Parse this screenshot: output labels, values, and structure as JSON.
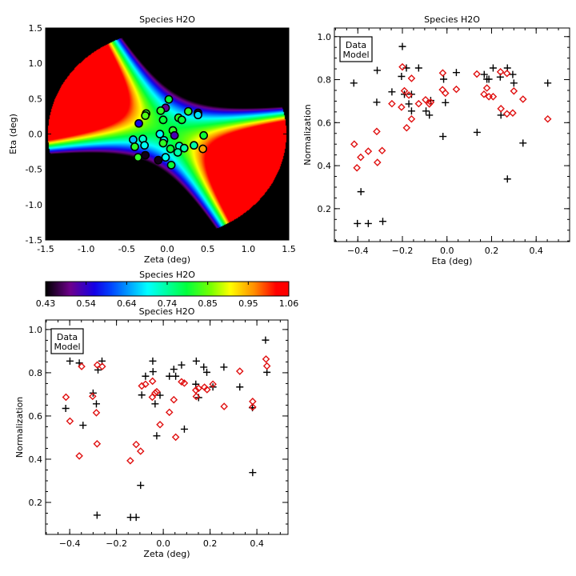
{
  "chart_data": [
    {
      "type": "heatmap",
      "title": "Species H2O",
      "xlabel": "Zeta (deg)",
      "ylabel": "Eta (deg)",
      "xlim": [
        -1.5,
        1.5
      ],
      "ylim": [
        -1.5,
        1.5
      ],
      "xticks": [
        "-1.5",
        "-1.0",
        "-0.5",
        "0.0",
        "0.5",
        "1.0",
        "1.5"
      ],
      "yticks": [
        "-1.5",
        "-1.0",
        "-0.5",
        "0.0",
        "0.5",
        "1.0",
        "1.5"
      ],
      "colorbar": {
        "title": "Species H2O",
        "ticks": [
          "0.43",
          "0.54",
          "0.64",
          "0.74",
          "0.85",
          "0.95",
          "1.06"
        ],
        "range": [
          0.43,
          1.06
        ]
      },
      "points": [
        {
          "zeta": 0.02,
          "eta": 0.49,
          "value": 0.8
        },
        {
          "zeta": -0.02,
          "eta": 0.37,
          "value": 0.5
        },
        {
          "zeta": -0.08,
          "eta": 0.33,
          "value": 0.82
        },
        {
          "zeta": -0.26,
          "eta": 0.29,
          "value": 0.82
        },
        {
          "zeta": -0.27,
          "eta": 0.26,
          "value": 0.84
        },
        {
          "zeta": -0.35,
          "eta": 0.15,
          "value": 0.56
        },
        {
          "zeta": -0.05,
          "eta": 0.2,
          "value": 0.8
        },
        {
          "zeta": 0.14,
          "eta": 0.23,
          "value": 0.82
        },
        {
          "zeta": 0.18,
          "eta": 0.2,
          "value": 0.8
        },
        {
          "zeta": 0.26,
          "eta": 0.32,
          "value": 0.82
        },
        {
          "zeta": 0.38,
          "eta": 0.3,
          "value": 0.45
        },
        {
          "zeta": 0.38,
          "eta": 0.27,
          "value": 0.68
        },
        {
          "zeta": -0.09,
          "eta": 0.0,
          "value": 0.7
        },
        {
          "zeta": 0.07,
          "eta": 0.05,
          "value": 0.82
        },
        {
          "zeta": 0.09,
          "eta": -0.02,
          "value": 0.52
        },
        {
          "zeta": 0.45,
          "eta": -0.02,
          "value": 0.8
        },
        {
          "zeta": -0.42,
          "eta": -0.08,
          "value": 0.66
        },
        {
          "zeta": -0.3,
          "eta": -0.07,
          "value": 0.72
        },
        {
          "zeta": -0.4,
          "eta": -0.18,
          "value": 0.82
        },
        {
          "zeta": -0.28,
          "eta": -0.16,
          "value": 0.7
        },
        {
          "zeta": -0.04,
          "eta": -0.09,
          "value": 0.7
        },
        {
          "zeta": -0.05,
          "eta": -0.13,
          "value": 0.82
        },
        {
          "zeta": 0.04,
          "eta": -0.21,
          "value": 0.8
        },
        {
          "zeta": 0.15,
          "eta": -0.17,
          "value": 0.72
        },
        {
          "zeta": 0.21,
          "eta": -0.2,
          "value": 0.74
        },
        {
          "zeta": 0.13,
          "eta": -0.26,
          "value": 0.74
        },
        {
          "zeta": 0.33,
          "eta": -0.16,
          "value": 0.74
        },
        {
          "zeta": 0.44,
          "eta": -0.21,
          "value": 0.96
        },
        {
          "zeta": -0.36,
          "eta": -0.33,
          "value": 0.82
        },
        {
          "zeta": -0.27,
          "eta": -0.3,
          "value": 0.44
        },
        {
          "zeta": -0.11,
          "eta": -0.37,
          "value": 0.44
        },
        {
          "zeta": -0.02,
          "eta": -0.33,
          "value": 0.7
        },
        {
          "zeta": 0.05,
          "eta": -0.44,
          "value": 0.8
        }
      ]
    },
    {
      "type": "scatter",
      "title": "Species H2O",
      "xlabel": "Eta (deg)",
      "ylabel": "Normalization",
      "xlim": [
        -0.505,
        0.55
      ],
      "ylim": [
        0.047,
        1.04
      ],
      "xticks": [
        -0.4,
        -0.2,
        0.0,
        0.2,
        0.4
      ],
      "yticks": [
        0.2,
        0.4,
        0.6,
        0.8,
        1.0
      ],
      "legend": {
        "position": "top-left",
        "entries": [
          "Data",
          "Model"
        ]
      },
      "series": [
        {
          "name": "Data",
          "marker": "plus",
          "color": "#000000",
          "points": [
            [
              -0.418,
              0.784
            ],
            [
              -0.402,
              0.131
            ],
            [
              -0.386,
              0.279
            ],
            [
              -0.353,
              0.131
            ],
            [
              -0.313,
              0.843
            ],
            [
              -0.315,
              0.695
            ],
            [
              -0.288,
              0.141
            ],
            [
              -0.247,
              0.743
            ],
            [
              -0.2,
              0.954
            ],
            [
              -0.204,
              0.815
            ],
            [
              -0.182,
              0.854
            ],
            [
              -0.191,
              0.732
            ],
            [
              -0.159,
              0.732
            ],
            [
              -0.171,
              0.687
            ],
            [
              -0.159,
              0.654
            ],
            [
              -0.127,
              0.854
            ],
            [
              -0.094,
              0.654
            ],
            [
              -0.079,
              0.635
            ],
            [
              -0.073,
              0.703
            ],
            [
              -0.018,
              0.536
            ],
            [
              -0.015,
              0.802
            ],
            [
              -0.007,
              0.693
            ],
            [
              0.042,
              0.833
            ],
            [
              0.135,
              0.555
            ],
            [
              0.167,
              0.824
            ],
            [
              0.179,
              0.802
            ],
            [
              0.188,
              0.802
            ],
            [
              0.207,
              0.854
            ],
            [
              0.239,
              0.812
            ],
            [
              0.242,
              0.635
            ],
            [
              0.271,
              0.854
            ],
            [
              0.271,
              0.338
            ],
            [
              0.295,
              0.824
            ],
            [
              0.3,
              0.784
            ],
            [
              0.341,
              0.505
            ],
            [
              0.452,
              0.784
            ]
          ]
        },
        {
          "name": "Model",
          "marker": "diamond",
          "color": "#e01010",
          "points": [
            [
              -0.416,
              0.5
            ],
            [
              -0.404,
              0.39
            ],
            [
              -0.387,
              0.439
            ],
            [
              -0.353,
              0.467
            ],
            [
              -0.315,
              0.559
            ],
            [
              -0.312,
              0.415
            ],
            [
              -0.291,
              0.47
            ],
            [
              -0.247,
              0.688
            ],
            [
              -0.204,
              0.672
            ],
            [
              -0.2,
              0.859
            ],
            [
              -0.191,
              0.748
            ],
            [
              -0.171,
              0.728
            ],
            [
              -0.159,
              0.806
            ],
            [
              -0.159,
              0.617
            ],
            [
              -0.181,
              0.576
            ],
            [
              -0.127,
              0.688
            ],
            [
              -0.096,
              0.706
            ],
            [
              -0.079,
              0.687
            ],
            [
              -0.073,
              0.695
            ],
            [
              -0.019,
              0.831
            ],
            [
              -0.02,
              0.753
            ],
            [
              -0.007,
              0.737
            ],
            [
              0.042,
              0.755
            ],
            [
              0.134,
              0.826
            ],
            [
              0.166,
              0.732
            ],
            [
              0.179,
              0.761
            ],
            [
              0.188,
              0.721
            ],
            [
              0.207,
              0.721
            ],
            [
              0.24,
              0.836
            ],
            [
              0.242,
              0.665
            ],
            [
              0.269,
              0.829
            ],
            [
              0.269,
              0.641
            ],
            [
              0.295,
              0.645
            ],
            [
              0.3,
              0.747
            ],
            [
              0.341,
              0.709
            ],
            [
              0.452,
              0.617
            ]
          ]
        }
      ]
    },
    {
      "type": "scatter",
      "title": "Species H2O",
      "xlabel": "Zeta (deg)",
      "ylabel": "Normalization",
      "xlim": [
        -0.503,
        0.533
      ],
      "ylim": [
        0.052,
        1.044
      ],
      "xticks": [
        -0.4,
        -0.2,
        0.0,
        0.2,
        0.4
      ],
      "yticks": [
        0.2,
        0.4,
        0.6,
        0.8,
        1.0
      ],
      "legend": {
        "position": "top-left",
        "entries": [
          "Data",
          "Model"
        ]
      },
      "series": [
        {
          "name": "Data",
          "marker": "plus",
          "color": "#000000",
          "points": [
            [
              -0.399,
              0.854
            ],
            [
              -0.417,
              0.635
            ],
            [
              -0.359,
              0.845
            ],
            [
              -0.343,
              0.557
            ],
            [
              -0.3,
              0.706
            ],
            [
              -0.286,
              0.656
            ],
            [
              -0.279,
              0.813
            ],
            [
              -0.262,
              0.854
            ],
            [
              -0.283,
              0.141
            ],
            [
              -0.14,
              0.131
            ],
            [
              -0.116,
              0.131
            ],
            [
              -0.097,
              0.279
            ],
            [
              -0.092,
              0.697
            ],
            [
              -0.076,
              0.784
            ],
            [
              -0.045,
              0.854
            ],
            [
              -0.044,
              0.805
            ],
            [
              -0.035,
              0.656
            ],
            [
              -0.028,
              0.508
            ],
            [
              -0.014,
              0.696
            ],
            [
              0.026,
              0.784
            ],
            [
              0.045,
              0.816
            ],
            [
              0.053,
              0.784
            ],
            [
              0.078,
              0.836
            ],
            [
              0.09,
              0.539
            ],
            [
              0.141,
              0.854
            ],
            [
              0.139,
              0.747
            ],
            [
              0.151,
              0.685
            ],
            [
              0.173,
              0.826
            ],
            [
              0.186,
              0.802
            ],
            [
              0.212,
              0.734
            ],
            [
              0.259,
              0.826
            ],
            [
              0.327,
              0.734
            ],
            [
              0.381,
              0.638
            ],
            [
              0.382,
              0.338
            ],
            [
              0.437,
              0.951
            ],
            [
              0.443,
              0.802
            ]
          ]
        },
        {
          "name": "Model",
          "marker": "diamond",
          "color": "#e01010",
          "points": [
            [
              -0.416,
              0.687
            ],
            [
              -0.399,
              0.576
            ],
            [
              -0.349,
              0.829
            ],
            [
              -0.359,
              0.415
            ],
            [
              -0.302,
              0.691
            ],
            [
              -0.286,
              0.615
            ],
            [
              -0.282,
              0.836
            ],
            [
              -0.283,
              0.471
            ],
            [
              -0.261,
              0.829
            ],
            [
              -0.141,
              0.393
            ],
            [
              -0.116,
              0.468
            ],
            [
              -0.097,
              0.437
            ],
            [
              -0.092,
              0.739
            ],
            [
              -0.076,
              0.747
            ],
            [
              -0.046,
              0.761
            ],
            [
              -0.047,
              0.687
            ],
            [
              -0.035,
              0.706
            ],
            [
              -0.028,
              0.712
            ],
            [
              -0.014,
              0.56
            ],
            [
              0.026,
              0.617
            ],
            [
              0.045,
              0.675
            ],
            [
              0.053,
              0.502
            ],
            [
              0.078,
              0.758
            ],
            [
              0.09,
              0.752
            ],
            [
              0.139,
              0.719
            ],
            [
              0.141,
              0.69
            ],
            [
              0.151,
              0.728
            ],
            [
              0.176,
              0.733
            ],
            [
              0.187,
              0.722
            ],
            [
              0.212,
              0.747
            ],
            [
              0.26,
              0.644
            ],
            [
              0.327,
              0.807
            ],
            [
              0.382,
              0.667
            ],
            [
              0.382,
              0.641
            ],
            [
              0.439,
              0.863
            ],
            [
              0.443,
              0.831
            ]
          ]
        }
      ]
    }
  ]
}
